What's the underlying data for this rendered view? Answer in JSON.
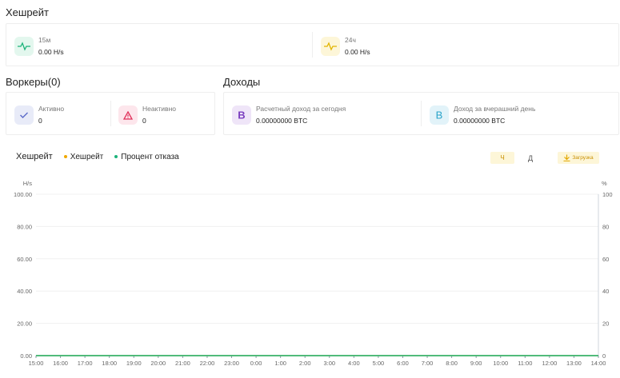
{
  "hashrate_section": {
    "title": "Хешрейт",
    "stats": [
      {
        "label": "15м",
        "value": "0.00 H/s",
        "icon": "pulse-icon",
        "icon_color": "#1bb37a",
        "icon_bg": "#e3f7ee"
      },
      {
        "label": "24ч",
        "value": "0.00 H/s",
        "icon": "pulse-icon",
        "icon_color": "#e3b500",
        "icon_bg": "#fdf6d8"
      }
    ]
  },
  "workers_section": {
    "title": "Воркеры(0)",
    "stats": [
      {
        "label": "Активно",
        "value": "0",
        "icon": "check-icon",
        "icon_color": "#5b6ac9",
        "icon_bg": "#e8ebf8"
      },
      {
        "label": "Неактивно",
        "value": "0",
        "icon": "warning-triangle-icon",
        "icon_color": "#e0305a",
        "icon_bg": "#fde6ec"
      }
    ]
  },
  "income_section": {
    "title": "Доходы",
    "stats": [
      {
        "label": "Расчетный доход за сегодня",
        "value": "0.00000000 BTC",
        "icon": "bitcoin-icon",
        "icon_color": "#7b3fbf",
        "icon_bg": "#efe5f8"
      },
      {
        "label": "Доход за вчерашний день",
        "value": "0.00000000 BTC",
        "icon": "bitcoin-icon",
        "icon_color": "#2aa4c9",
        "icon_bg": "#e2f3f9"
      }
    ]
  },
  "chart_header": {
    "title": "Хешрейт",
    "legend": [
      {
        "name": "Хешрейт",
        "color": "#f0a800"
      },
      {
        "name": "Процент отказа",
        "color": "#1bb37a"
      }
    ],
    "buttons": {
      "hour": "Ч",
      "day": "Д",
      "download": "Загрузка"
    },
    "accent": "#f0b400"
  },
  "chart_data": {
    "type": "line",
    "title": "Хешрейт",
    "ylabel": "H/s",
    "y2label": "%",
    "x": [
      "15:00",
      "16:00",
      "17:00",
      "18:00",
      "19:00",
      "20:00",
      "21:00",
      "22:00",
      "23:00",
      "0:00",
      "1:00",
      "2:00",
      "3:00",
      "4:00",
      "5:00",
      "6:00",
      "7:00",
      "8:00",
      "9:00",
      "10:00",
      "11:00",
      "12:00",
      "13:00",
      "14:00"
    ],
    "ylim": [
      0,
      100
    ],
    "y_ticks": [
      "0.00",
      "20.00",
      "40.00",
      "60.00",
      "80.00",
      "100.00"
    ],
    "y2lim": [
      0,
      100
    ],
    "y2_ticks": [
      "0",
      "20",
      "40",
      "60",
      "80",
      "100"
    ],
    "series": [
      {
        "name": "Хешрейт",
        "axis": "left",
        "color": "#f0a800",
        "values": [
          0,
          0,
          0,
          0,
          0,
          0,
          0,
          0,
          0,
          0,
          0,
          0,
          0,
          0,
          0,
          0,
          0,
          0,
          0,
          0,
          0,
          0,
          0,
          0
        ]
      },
      {
        "name": "Процент отказа",
        "axis": "right",
        "color": "#1bb37a",
        "values": [
          0,
          0,
          0,
          0,
          0,
          0,
          0,
          0,
          0,
          0,
          0,
          0,
          0,
          0,
          0,
          0,
          0,
          0,
          0,
          0,
          0,
          0,
          0,
          0
        ]
      }
    ],
    "grid": true
  }
}
